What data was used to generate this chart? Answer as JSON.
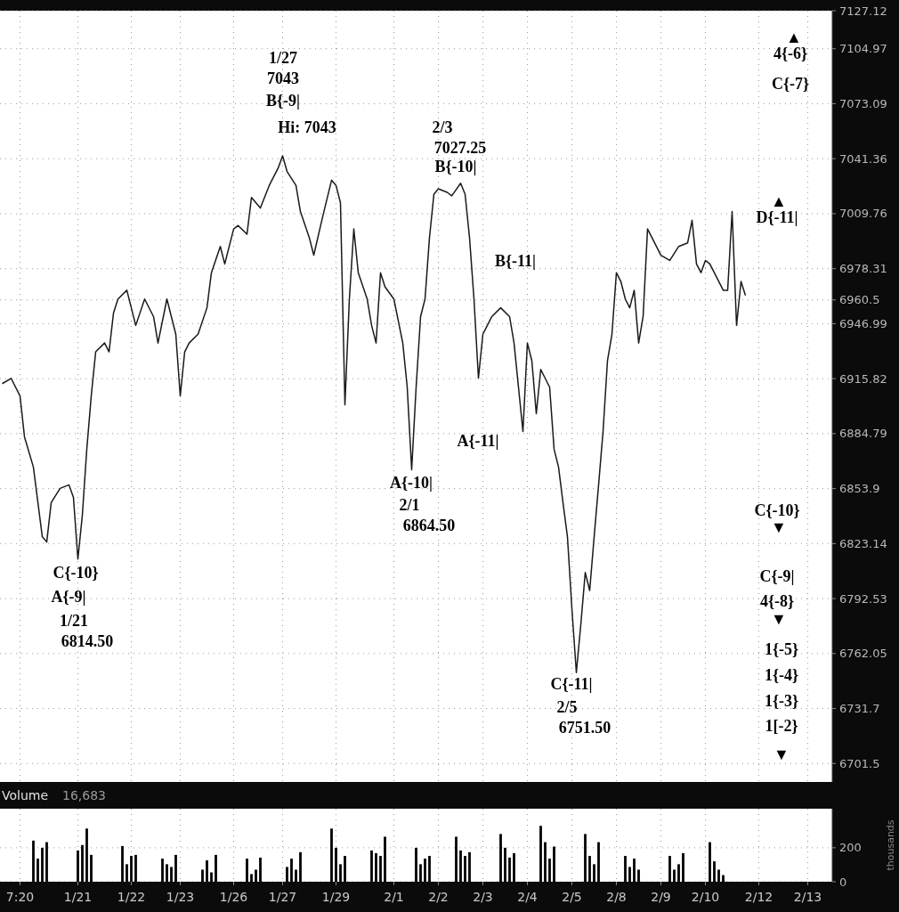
{
  "chart_data": [
    {
      "type": "line",
      "color": "#1a1a1a",
      "log": true,
      "grid": true,
      "tick_labels": "y",
      "categories": [
        null,
        null,
        null,
        null,
        null,
        null,
        null,
        null,
        null,
        null,
        null,
        null,
        null,
        null,
        null,
        null,
        null,
        null,
        null,
        null,
        null,
        null,
        null,
        null,
        null,
        null,
        null,
        null,
        null,
        null,
        null,
        null,
        null,
        null,
        null,
        null,
        null,
        null,
        null,
        null,
        null,
        null,
        null,
        null,
        null,
        null,
        null,
        null,
        null,
        null,
        null,
        null,
        null,
        null,
        null,
        null,
        null,
        null,
        null,
        null,
        null,
        null,
        null,
        null,
        null,
        null,
        null,
        null,
        null,
        null,
        null,
        null,
        null,
        null,
        null,
        null,
        null,
        null,
        null,
        null,
        null,
        null,
        null,
        null,
        null,
        null,
        null,
        null,
        null,
        null,
        null,
        null,
        null,
        null,
        null,
        null,
        null,
        null,
        null,
        null,
        null,
        null,
        null,
        null,
        null,
        null,
        null,
        null,
        null,
        null,
        null,
        null,
        null,
        null,
        null,
        null,
        null,
        null,
        null,
        null,
        null,
        null,
        null,
        null,
        null,
        null,
        null,
        null,
        null,
        null,
        null,
        null,
        null,
        null,
        null,
        null,
        null,
        null,
        null,
        null,
        null,
        null,
        null,
        null,
        null,
        null,
        null,
        null,
        null,
        null,
        null,
        null,
        null,
        null,
        null,
        null,
        null,
        null,
        null,
        null,
        null,
        null,
        null,
        null,
        null,
        null,
        null,
        null,
        null,
        null,
        null,
        null,
        null,
        null,
        null,
        null,
        null,
        null,
        null,
        null,
        null,
        null,
        null,
        null,
        null,
        null,
        null
      ],
      "values": [
        6913,
        null,
        6916,
        null,
        6906,
        6883,
        null,
        6866,
        null,
        6827,
        6824,
        6846,
        null,
        6854,
        null,
        6856,
        6849,
        6814.5,
        6839,
        6876,
        6906,
        6931,
        null,
        6936,
        6931,
        6953,
        6961,
        null,
        6966,
        null,
        6946,
        null,
        6961,
        null,
        6951,
        6936,
        null,
        6961,
        null,
        6941,
        6906,
        6931,
        6936,
        null,
        6941,
        null,
        6956,
        6976,
        null,
        6991,
        6981,
        null,
        7001,
        7003,
        null,
        6998,
        7019,
        null,
        7013,
        null,
        7026,
        null,
        7036,
        7043,
        7034,
        null,
        7026,
        7011,
        null,
        6996,
        6986,
        null,
        7008,
        null,
        7029,
        7026,
        7016,
        6901,
        6961,
        7001,
        6976,
        null,
        6961,
        6946,
        6936,
        6976,
        6968,
        null,
        6961,
        null,
        6936,
        6911,
        6864.5,
        6911,
        6951,
        6961,
        6996,
        7021,
        7024,
        null,
        7022,
        7020,
        null,
        7027.25,
        7021,
        6996,
        6961,
        6916,
        6941,
        6946,
        6951,
        null,
        6956,
        null,
        6951,
        6936,
        6911,
        6886,
        6936,
        6926,
        6896,
        6921,
        6916,
        6911,
        6876,
        6866,
        6846,
        6827,
        6787,
        6751.5,
        6778,
        6807,
        6797,
        6827,
        6856,
        6886,
        6926,
        6941,
        6976,
        6971,
        6961,
        6956,
        6966,
        6936,
        6951,
        7001,
        6996,
        null,
        6986,
        null,
        6983,
        null,
        6991,
        null,
        6993,
        7006,
        6981,
        6976,
        6983,
        6981,
        6976,
        null,
        6966,
        6966,
        7011,
        6946,
        6971,
        6963,
        null,
        null,
        null,
        null,
        null,
        null,
        null,
        null,
        null,
        null,
        null,
        null,
        null,
        null,
        null,
        null,
        null,
        null,
        null
      ],
      "ylim": [
        6691.4,
        7127.12
      ],
      "yticks": [
        6701.5,
        6731.7,
        6762.05,
        6792.53,
        6823.14,
        6853.9,
        6884.79,
        6915.82,
        6946.99,
        6960.5,
        6978.31,
        7009.76,
        7041.36,
        7073.09,
        7104.97,
        7127.12
      ],
      "annotations": [
        "1/27",
        "7043",
        "B{-9|",
        "Hi: 7043",
        "2/3",
        "7027.25",
        "B{-10|",
        "B{-11|",
        "▲",
        "D{-11|",
        "▲",
        "4{-6}",
        "C{-7}",
        "C{-10}",
        "A{-9|",
        "1/21",
        "6814.50",
        "A{-10|",
        "2/1",
        "6864.50",
        "A{-11|",
        "C{-11|",
        "2/5",
        "6751.50",
        "C{-10}",
        "▼",
        "C{-9|",
        "4{-8}",
        "▼",
        "1{-5}",
        "1{-4}",
        "1{-3}",
        "1[-2}",
        "▼"
      ]
    },
    {
      "type": "bar",
      "title": "Volume",
      "ylabel": "thousands",
      "color": "#000000",
      "grid": true,
      "categories": [
        null,
        null,
        null,
        null,
        "7:20",
        null,
        null,
        null,
        null,
        null,
        null,
        null,
        null,
        null,
        null,
        null,
        null,
        "1/21",
        null,
        null,
        null,
        null,
        null,
        null,
        null,
        null,
        null,
        null,
        null,
        "1/22",
        null,
        null,
        null,
        null,
        null,
        null,
        null,
        null,
        null,
        null,
        "1/23",
        null,
        null,
        null,
        null,
        null,
        null,
        null,
        null,
        null,
        null,
        null,
        "1/26",
        null,
        null,
        null,
        null,
        null,
        null,
        null,
        null,
        null,
        null,
        "1/27",
        null,
        null,
        null,
        null,
        null,
        null,
        null,
        null,
        null,
        null,
        null,
        "1/29",
        null,
        null,
        null,
        null,
        null,
        null,
        null,
        null,
        null,
        null,
        null,
        null,
        "2/1",
        null,
        null,
        null,
        null,
        null,
        null,
        null,
        null,
        null,
        "2/2",
        null,
        null,
        null,
        null,
        null,
        null,
        null,
        null,
        null,
        "2/3",
        null,
        null,
        null,
        null,
        null,
        null,
        null,
        null,
        null,
        "2/4",
        null,
        null,
        null,
        null,
        null,
        null,
        null,
        null,
        null,
        "2/5",
        null,
        null,
        null,
        null,
        null,
        null,
        null,
        null,
        null,
        "2/8",
        null,
        null,
        null,
        null,
        null,
        null,
        null,
        null,
        null,
        "2/9",
        null,
        null,
        null,
        null,
        null,
        null,
        null,
        null,
        null,
        "2/10",
        null,
        null,
        null,
        null,
        null,
        null,
        null,
        null,
        null,
        null,
        null,
        "2/12",
        null,
        null,
        null,
        null,
        null,
        null,
        null,
        null,
        null,
        null,
        "2/13",
        null,
        null,
        null,
        null,
        null
      ],
      "values": [
        null,
        null,
        null,
        null,
        null,
        null,
        null,
        242,
        136,
        200,
        233,
        null,
        null,
        null,
        null,
        null,
        null,
        184,
        216,
        313,
        158,
        null,
        null,
        null,
        null,
        null,
        null,
        210,
        103,
        152,
        158,
        null,
        null,
        null,
        null,
        null,
        136,
        103,
        87,
        158,
        null,
        null,
        null,
        null,
        null,
        71,
        126,
        55,
        158,
        null,
        null,
        null,
        null,
        null,
        null,
        136,
        45,
        71,
        142,
        null,
        null,
        null,
        null,
        null,
        87,
        136,
        71,
        174,
        null,
        null,
        null,
        null,
        null,
        null,
        313,
        200,
        103,
        152,
        null,
        null,
        null,
        null,
        null,
        184,
        168,
        152,
        265,
        null,
        null,
        null,
        null,
        null,
        null,
        200,
        103,
        136,
        152,
        null,
        null,
        null,
        null,
        null,
        265,
        184,
        152,
        174,
        null,
        null,
        null,
        null,
        null,
        null,
        281,
        200,
        142,
        168,
        null,
        null,
        null,
        null,
        null,
        329,
        233,
        136,
        207,
        null,
        null,
        null,
        null,
        null,
        null,
        281,
        152,
        103,
        233,
        null,
        null,
        null,
        null,
        null,
        152,
        87,
        136,
        71,
        null,
        null,
        null,
        null,
        null,
        null,
        152,
        71,
        103,
        168,
        null,
        null,
        null,
        null,
        null,
        233,
        120,
        71,
        39,
        null,
        null,
        null,
        null,
        null,
        null,
        null,
        null,
        null,
        null,
        null,
        null,
        null,
        null,
        null,
        null,
        null,
        null,
        null,
        null,
        null,
        null,
        null,
        null
      ],
      "ylim": [
        0,
        430
      ],
      "yticks": [
        0,
        200
      ],
      "annotations": [
        "16,683"
      ]
    }
  ]
}
